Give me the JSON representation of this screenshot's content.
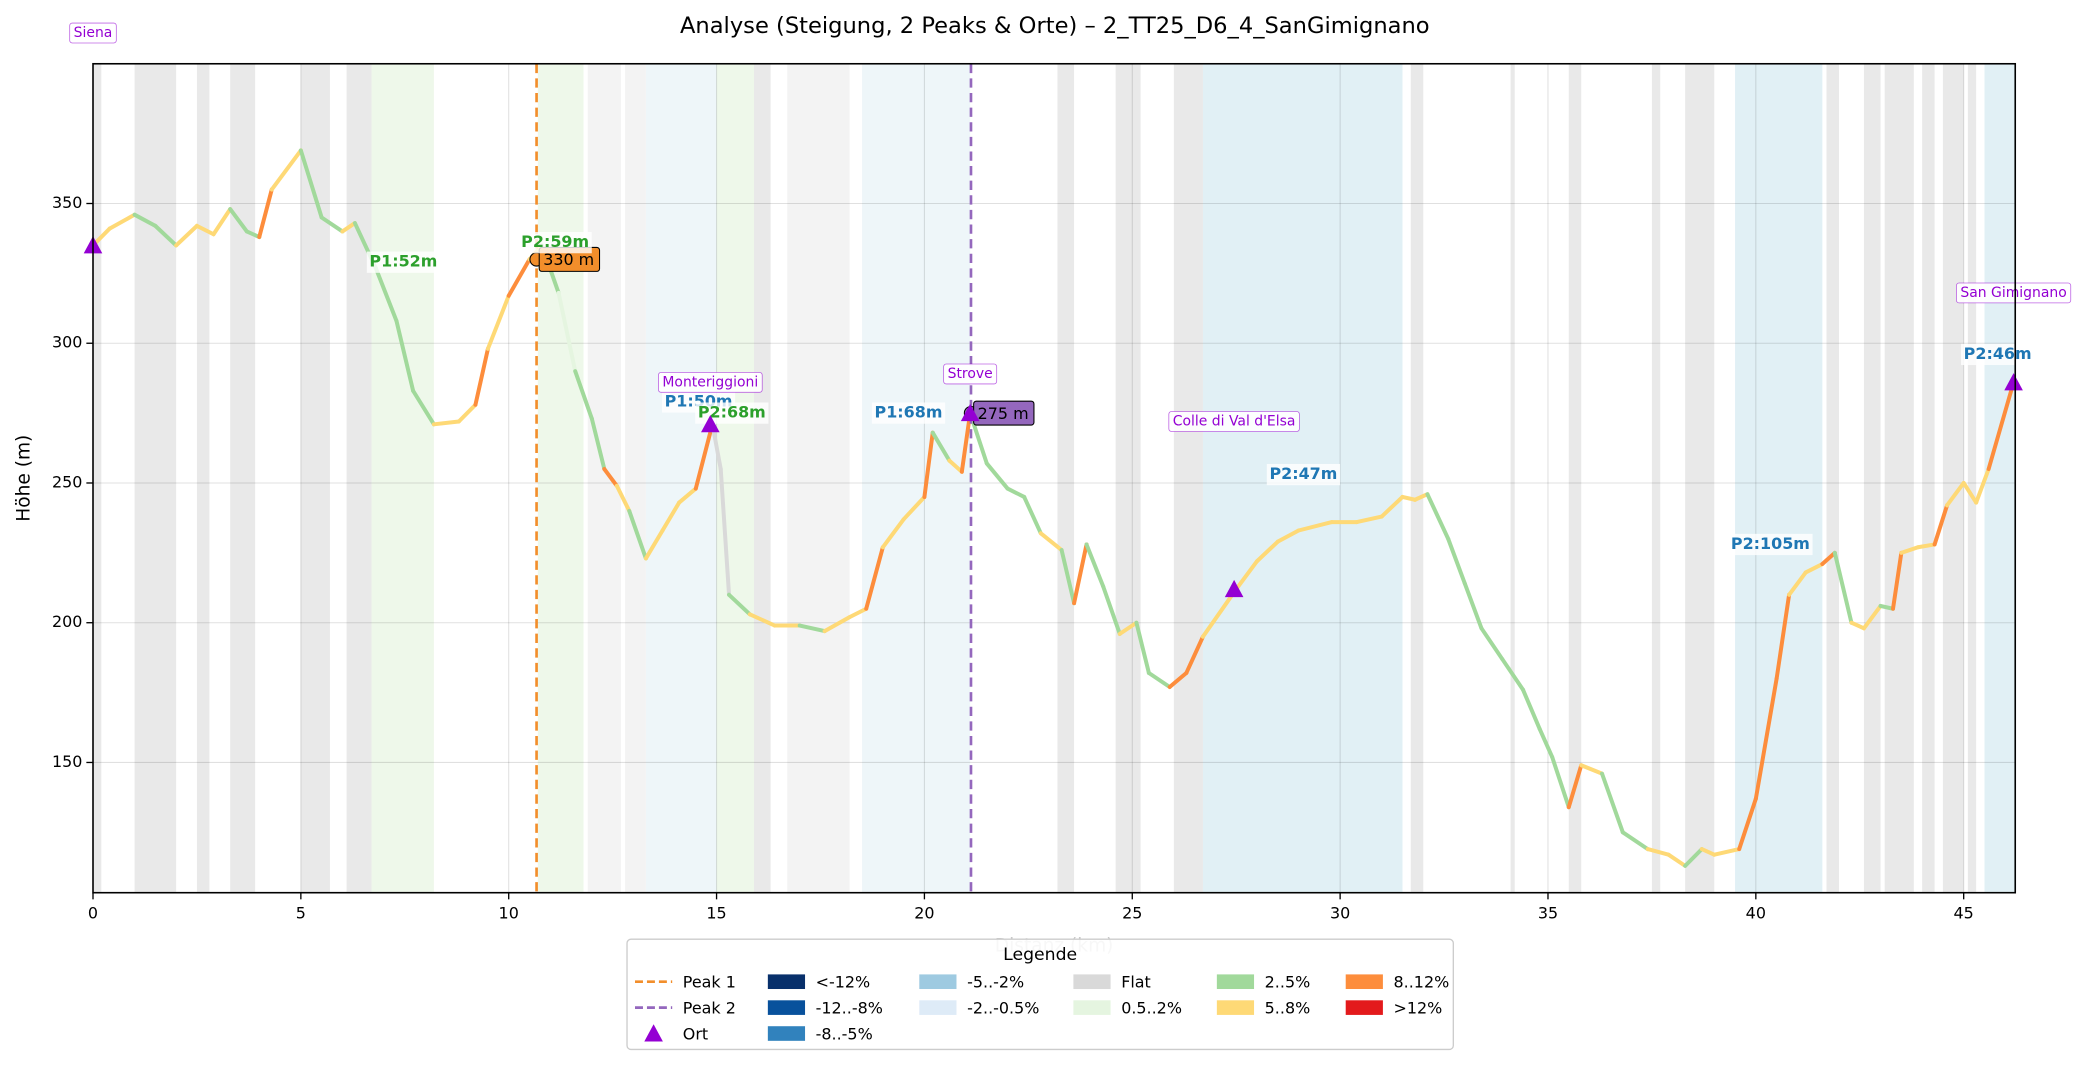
{
  "chart_data": {
    "type": "line",
    "title": "Analyse (Steigung, 2 Peaks & Orte) – 2_TT25_D6_4_SanGimignano",
    "xlabel": "Distanz (km)",
    "ylabel": "Höhe (m)",
    "xlim": [
      0,
      46.24
    ],
    "ylim": [
      103.4,
      400
    ],
    "xticks": [
      0,
      5,
      10,
      15,
      20,
      25,
      30,
      35,
      40,
      45
    ],
    "yticks": [
      150,
      200,
      250,
      300,
      350
    ],
    "grid": true,
    "x": [
      0,
      0.4,
      1.0,
      1.5,
      2.0,
      2.5,
      2.9,
      3.3,
      3.7,
      4.0,
      4.3,
      5.0,
      5.5,
      6.0,
      6.3,
      6.8,
      7.3,
      7.7,
      8.2,
      8.8,
      9.2,
      9.5,
      10.0,
      10.5,
      10.8,
      11.2,
      11.6,
      12.0,
      12.3,
      12.6,
      12.9,
      13.3,
      13.7,
      14.1,
      14.5,
      14.9,
      15.1,
      15.3,
      15.8,
      16.4,
      17.0,
      17.6,
      18.2,
      18.6,
      19.0,
      19.5,
      20.0,
      20.2,
      20.6,
      20.9,
      21.1,
      21.5,
      22.0,
      22.4,
      22.8,
      23.3,
      23.6,
      23.9,
      24.3,
      24.7,
      25.1,
      25.4,
      25.9,
      26.3,
      26.7,
      27.5,
      28.0,
      28.5,
      29.0,
      29.8,
      30.4,
      31.0,
      31.5,
      31.8,
      32.1,
      32.6,
      33.0,
      33.4,
      33.9,
      34.4,
      34.8,
      35.1,
      35.5,
      35.8,
      36.3,
      36.8,
      37.4,
      37.9,
      38.3,
      38.7,
      39.0,
      39.6,
      40.0,
      40.5,
      40.8,
      41.2,
      41.6,
      41.9,
      42.3,
      42.6,
      43.0,
      43.3,
      43.5,
      43.9,
      44.3,
      44.6,
      45.0,
      45.3,
      45.6,
      46.2
    ],
    "values": [
      335,
      341,
      346,
      342,
      335,
      342,
      339,
      348,
      340,
      338,
      355,
      369,
      345,
      340,
      343,
      327,
      308,
      283,
      271,
      272,
      278,
      298,
      317,
      330,
      335,
      318,
      290,
      273,
      255,
      249,
      240,
      223,
      233,
      243,
      248,
      271,
      255,
      210,
      203,
      199,
      199,
      197,
      202,
      205,
      227,
      237,
      245,
      268,
      258,
      254,
      275,
      257,
      248,
      245,
      232,
      226,
      207,
      228,
      213,
      196,
      200,
      182,
      177,
      182,
      195,
      212,
      222,
      229,
      233,
      236,
      236,
      238,
      245,
      244,
      246,
      230,
      214,
      198,
      187,
      176,
      162,
      152,
      134,
      149,
      146,
      125,
      119,
      117,
      113,
      119,
      117,
      119,
      137,
      180,
      210,
      218,
      221,
      225,
      200,
      198,
      206,
      205,
      225,
      227,
      228,
      242,
      250,
      243,
      255,
      286
    ],
    "grades": [
      8,
      8,
      7,
      7,
      8,
      8,
      8,
      7,
      7,
      9,
      8,
      7,
      7,
      8,
      7,
      7,
      7,
      7,
      8,
      8,
      9,
      8,
      9,
      8,
      7,
      6,
      7,
      7,
      9,
      8,
      7,
      8,
      8,
      8,
      9,
      5,
      5,
      7,
      8,
      8,
      7,
      8,
      8,
      9,
      8,
      8,
      9,
      7,
      8,
      9,
      7,
      7,
      7,
      7,
      8,
      7,
      9,
      7,
      7,
      8,
      7,
      7,
      9,
      9,
      8,
      8,
      8,
      8,
      8,
      8,
      8,
      8,
      8,
      8,
      7,
      7,
      7,
      7,
      7,
      7,
      7,
      7,
      9,
      8,
      7,
      7,
      8,
      8,
      7,
      8,
      8,
      9,
      9,
      9,
      8,
      8,
      9,
      7,
      8,
      8,
      7,
      9,
      8,
      8,
      9,
      8,
      8,
      8,
      9
    ],
    "legend_title": "Legende",
    "classes": [
      {
        "name": "<-12%",
        "color": "#08306b"
      },
      {
        "name": "-12..-8%",
        "color": "#08519c"
      },
      {
        "name": "-8..-5%",
        "color": "#3182bd"
      },
      {
        "name": "-5..-2%",
        "color": "#9ecae1"
      },
      {
        "name": "-2..-0.5%",
        "color": "#deebf7"
      },
      {
        "name": "Flat",
        "color": "#d9d9d9"
      },
      {
        "name": "0.5..2%",
        "color": "#e5f5e0"
      },
      {
        "name": "2..5%",
        "color": "#a1d99b"
      },
      {
        "name": "5..8%",
        "color": "#fed976"
      },
      {
        "name": "8..12%",
        "color": "#fd8d3c"
      },
      {
        "name": ">12%",
        "color": "#e31a1c"
      }
    ],
    "peaks": [
      {
        "name": "Peak 1",
        "x": 10.67,
        "value": 330,
        "value_label": "330 m",
        "color": "#f28e2b"
      },
      {
        "name": "Peak 2",
        "x": 21.12,
        "value": 275,
        "value_label": "275 m",
        "color": "#9467bd"
      }
    ],
    "place_legend": "Ort",
    "place_color": "#9400d3",
    "places": [
      {
        "name": "Siena",
        "x": 0,
        "y": 335,
        "label_y": 411
      },
      {
        "name": "Monteriggioni",
        "x": 14.85,
        "y": 271,
        "label_y": 286
      },
      {
        "name": "Strove",
        "x": 21.1,
        "y": 275,
        "label_y": 289
      },
      {
        "name": "Colle di Val d'Elsa",
        "x": 27.45,
        "y": 212,
        "label_y": 272
      },
      {
        "name": "San Gimignano",
        "x": 46.2,
        "y": 286,
        "label_y": 318
      }
    ],
    "annotations": [
      {
        "text": "P1:52m",
        "x": 6.65,
        "y": 329,
        "color": "#2ca02c"
      },
      {
        "text": "P2:59m",
        "x": 10.3,
        "y": 336,
        "color": "#2ca02c"
      },
      {
        "text": "P1:50m",
        "x": 13.75,
        "y": 279,
        "color": "#1f77b4"
      },
      {
        "text": "P2:68m",
        "x": 14.55,
        "y": 275,
        "color": "#2ca02c"
      },
      {
        "text": "P1:68m",
        "x": 18.8,
        "y": 275,
        "color": "#1f77b4"
      },
      {
        "text": "P2:47m",
        "x": 28.3,
        "y": 253,
        "color": "#1f77b4"
      },
      {
        "text": "P2:105m",
        "x": 39.4,
        "y": 228,
        "color": "#1f77b4"
      },
      {
        "text": "P2:46m",
        "x": 45.0,
        "y": 296,
        "color": "#1f77b4"
      }
    ],
    "bands": [
      {
        "start": 0,
        "end": 0.2,
        "color": "#e9e9e9"
      },
      {
        "start": 1.0,
        "end": 2.0,
        "color": "#e9e9e9"
      },
      {
        "start": 2.5,
        "end": 2.8,
        "color": "#e9e9e9"
      },
      {
        "start": 3.3,
        "end": 3.9,
        "color": "#e9e9e9"
      },
      {
        "start": 5.0,
        "end": 5.7,
        "color": "#e9e9e9"
      },
      {
        "start": 6.1,
        "end": 6.7,
        "color": "#e9e9e9"
      },
      {
        "start": 6.7,
        "end": 8.2,
        "color": "#eef8ea"
      },
      {
        "start": 10.7,
        "end": 11.8,
        "color": "#eef8ea"
      },
      {
        "start": 11.9,
        "end": 12.7,
        "color": "#f3f3f3"
      },
      {
        "start": 12.8,
        "end": 13.3,
        "color": "#f3f3f3"
      },
      {
        "start": 13.3,
        "end": 15.0,
        "color": "#eef6f9"
      },
      {
        "start": 15.0,
        "end": 15.9,
        "color": "#eef8ea"
      },
      {
        "start": 15.9,
        "end": 16.3,
        "color": "#e9e9e9"
      },
      {
        "start": 16.7,
        "end": 18.2,
        "color": "#f3f3f3"
      },
      {
        "start": 18.5,
        "end": 21.1,
        "color": "#eef6f9"
      },
      {
        "start": 23.2,
        "end": 23.6,
        "color": "#e9e9e9"
      },
      {
        "start": 24.6,
        "end": 25.2,
        "color": "#e9e9e9"
      },
      {
        "start": 26.0,
        "end": 26.7,
        "color": "#e9e9e9"
      },
      {
        "start": 26.7,
        "end": 31.5,
        "color": "#e1f0f5"
      },
      {
        "start": 31.7,
        "end": 32.0,
        "color": "#e9e9e9"
      },
      {
        "start": 34.1,
        "end": 34.2,
        "color": "#e9e9e9"
      },
      {
        "start": 35.5,
        "end": 35.8,
        "color": "#e9e9e9"
      },
      {
        "start": 37.5,
        "end": 37.7,
        "color": "#e9e9e9"
      },
      {
        "start": 38.3,
        "end": 39.0,
        "color": "#e9e9e9"
      },
      {
        "start": 39.5,
        "end": 41.6,
        "color": "#e1f0f5"
      },
      {
        "start": 41.7,
        "end": 42.0,
        "color": "#e9e9e9"
      },
      {
        "start": 42.6,
        "end": 43.0,
        "color": "#e9e9e9"
      },
      {
        "start": 43.1,
        "end": 43.8,
        "color": "#e9e9e9"
      },
      {
        "start": 44.0,
        "end": 44.3,
        "color": "#e9e9e9"
      },
      {
        "start": 44.5,
        "end": 45.0,
        "color": "#e9e9e9"
      },
      {
        "start": 45.1,
        "end": 45.3,
        "color": "#e9e9e9"
      },
      {
        "start": 45.5,
        "end": 46.24,
        "color": "#e1f0f5"
      }
    ]
  }
}
